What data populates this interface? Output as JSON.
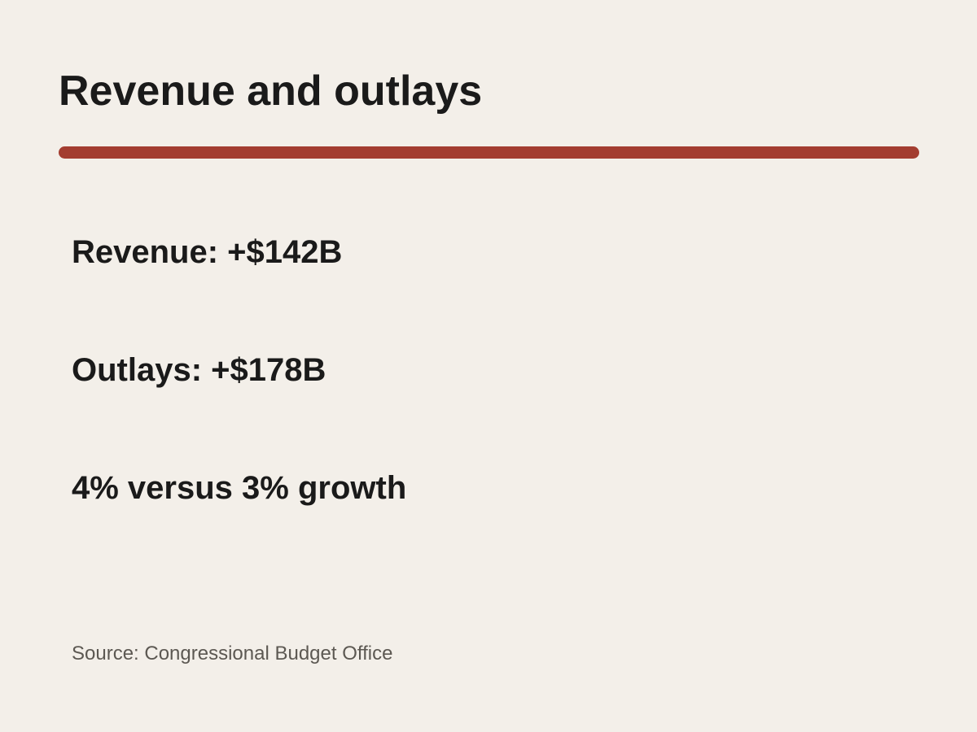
{
  "slide": {
    "title": "Revenue and outlays",
    "accent_color": "#a33d30",
    "stats": [
      {
        "text": "Revenue: +$142B"
      },
      {
        "text": "Outlays: +$178B"
      },
      {
        "text": "4% versus 3% growth"
      }
    ],
    "source": "Source: Congressional Budget Office"
  }
}
